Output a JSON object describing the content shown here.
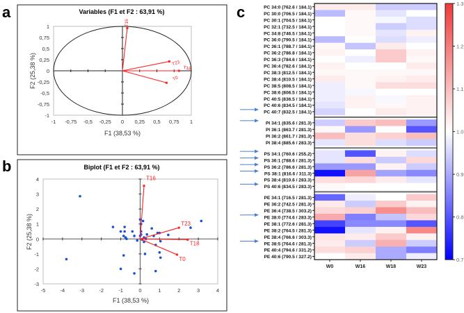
{
  "panel_labels": {
    "a": "a",
    "b": "b",
    "c": "c"
  },
  "chart_data": [
    {
      "type": "scatter",
      "panel": "a",
      "title": "Variables (F1 et F2 : 63,91 %)",
      "xlabel": "F1 (38,53 %)",
      "ylabel": "F2 (25,38 %)",
      "xlim": [
        -1,
        1
      ],
      "ylim": [
        -1,
        1
      ],
      "xticks": [
        "-1",
        "-0,75",
        "-0,5",
        "-0,25",
        "0",
        "0,25",
        "0,5",
        "0,75",
        "1"
      ],
      "yticks": [
        "-1",
        "-0,75",
        "-0,5",
        "-0,25",
        "0",
        "0,25",
        "0,5",
        "0,75",
        "1"
      ],
      "correlation_circle": true,
      "vectors": [
        {
          "name": "T16",
          "x": 0.07,
          "y": 0.96
        },
        {
          "name": "T23",
          "x": 0.68,
          "y": 0.21
        },
        {
          "name": "T18",
          "x": 0.82,
          "y": 0.0
        },
        {
          "name": "T0",
          "x": 0.64,
          "y": -0.27
        }
      ],
      "vector_color": "#ff2020"
    },
    {
      "type": "scatter",
      "panel": "b",
      "title": "Biplot (F1 et F2 : 63,91 %)",
      "xlabel": "F1 (38,53 %)",
      "ylabel": "F2 (25,38 %)",
      "xlim": [
        -5,
        4
      ],
      "ylim": [
        -3,
        4
      ],
      "xticks": [
        "-5",
        "-4",
        "-3",
        "-2",
        "-1",
        "0",
        "1",
        "2",
        "3",
        "4"
      ],
      "yticks": [
        "-3",
        "-2",
        "-1",
        "0",
        "1",
        "2",
        "3",
        "4"
      ],
      "points": [
        [
          -3.1,
          2.85
        ],
        [
          -3.8,
          -1.35
        ],
        [
          -1.0,
          -2.0
        ],
        [
          -0.3,
          -2.3
        ],
        [
          0.8,
          -2.15
        ],
        [
          -0.85,
          -1.1
        ],
        [
          0.25,
          -1.0
        ],
        [
          1.0,
          -0.9
        ],
        [
          1.05,
          -1.25
        ],
        [
          3.15,
          1.2
        ],
        [
          2.6,
          0.75
        ],
        [
          1.45,
          0.27
        ],
        [
          0.0,
          1.3
        ],
        [
          0.05,
          1.0
        ],
        [
          0.15,
          1.2
        ],
        [
          -0.4,
          0.5
        ],
        [
          -0.8,
          0.8
        ],
        [
          -1.4,
          0.8
        ],
        [
          -0.85,
          0.2
        ],
        [
          -0.75,
          0.1
        ],
        [
          -0.7,
          0.0
        ],
        [
          -0.3,
          0.2
        ],
        [
          -0.15,
          -0.1
        ],
        [
          0.0,
          0.2
        ],
        [
          0.05,
          0.5
        ],
        [
          0.05,
          0.3
        ],
        [
          0.2,
          0.1
        ],
        [
          0.3,
          0.0
        ],
        [
          0.7,
          0.2
        ],
        [
          0.6,
          0.7
        ],
        [
          0.9,
          0.4
        ],
        [
          1.0,
          0.4
        ],
        [
          0.8,
          -0.4
        ],
        [
          1.05,
          -0.15
        ],
        [
          0.1,
          -0.05
        ],
        [
          0.2,
          -0.2
        ],
        [
          0.35,
          0.3
        ],
        [
          -0.8,
          0.5
        ],
        [
          -1.0,
          0.5
        ]
      ],
      "point_color": "#1a4fd6",
      "vectors": [
        {
          "name": "T16",
          "x": 0.2,
          "y": 3.55
        },
        {
          "name": "T23",
          "x": 2.0,
          "y": 0.75
        },
        {
          "name": "T18",
          "x": 2.45,
          "y": -0.05
        },
        {
          "name": "T0",
          "x": 1.9,
          "y": -1.05
        }
      ],
      "vector_color": "#ff2020"
    },
    {
      "type": "heatmap",
      "panel": "c",
      "columns": [
        "W0",
        "W16",
        "W18",
        "W23"
      ],
      "colorbar": {
        "min": 0.7,
        "max": 1.3,
        "ticks": [
          "0.7",
          "0.8",
          "0.9",
          "1.0",
          "1.1",
          "1.2",
          "1.3"
        ],
        "low_color": "#0000ff",
        "mid_color": "#ffffff",
        "high_color": "#f03a3a"
      },
      "groups": [
        {
          "rows": [
            {
              "label": "PC 34:0 (762.6 / 184.1)",
              "values": [
                1.03,
                1.03,
                0.94,
                0.94
              ]
            },
            {
              "label": "PC 30:0 (706.5 / 184.1)",
              "values": [
                0.92,
                1.01,
                0.97,
                1.0
              ]
            },
            {
              "label": "PC 30:1 (704.5 / 184.1)",
              "values": [
                1.0,
                1.01,
                0.99,
                0.96
              ]
            },
            {
              "label": "PC 32:1 (732.5 / 184.1)",
              "values": [
                1.0,
                1.01,
                0.94,
                0.96
              ]
            },
            {
              "label": "PC 34:8 (746.5 / 184.1)",
              "values": [
                1.0,
                1.01,
                0.97,
                1.02
              ]
            },
            {
              "label": "PC 36:0 (790.5 / 184.1)",
              "values": [
                0.92,
                1.0,
                0.96,
                0.98
              ]
            },
            {
              "label": "PC 36:1 (788.7 / 184.1)",
              "values": [
                1.01,
                0.93,
                1.03,
                1.0
              ]
            },
            {
              "label": "PC 36:2 (786.8 / 184.1)",
              "values": [
                1.02,
                1.0,
                1.08,
                1.02
              ]
            },
            {
              "label": "PC 36:3 (784.6 / 184.1)",
              "values": [
                1.0,
                0.98,
                1.08,
                1.01
              ]
            },
            {
              "label": "PC 36:4 (782.6 / 184.1)",
              "values": [
                1.02,
                1.0,
                1.0,
                1.03
              ]
            },
            {
              "label": "PC 38:3 (812.5 / 184.1)",
              "values": [
                1.01,
                1.01,
                1.01,
                1.01
              ]
            },
            {
              "label": "PC 38:4 (810.5 / 184.1)",
              "values": [
                1.03,
                1.01,
                1.02,
                1.03
              ]
            },
            {
              "label": "PC 38:5 (808.5 / 184.1)",
              "values": [
                0.98,
                1.01,
                1.05,
                1.05
              ]
            },
            {
              "label": "PC 38:6 (806.5 / 184.1)",
              "values": [
                0.98,
                0.99,
                1.0,
                1.0
              ]
            },
            {
              "label": "PC 40:5 (836.5 / 184.1)",
              "values": [
                0.98,
                1.02,
                0.99,
                1.02
              ]
            },
            {
              "label": "PC 40:6 (834.5 / 184.1)",
              "values": [
                0.97,
                1.02,
                1.01,
                1.02
              ]
            },
            {
              "label": "PC 40:7 (832.5 / 184.1)",
              "values": [
                0.95,
                1.0,
                1.03,
                1.02
              ]
            }
          ]
        },
        {
          "rows": [
            {
              "label": "PI 34:1 (835.6 / 281.3)",
              "values": [
                0.94,
                1.08,
                1.1,
                0.88
              ]
            },
            {
              "label": "PI 36:1 (863.7 / 281.3)",
              "values": [
                1.01,
                0.88,
                1.0,
                0.8
              ]
            },
            {
              "label": "PI 36:2 (861.7 / 281.3)",
              "values": [
                1.1,
                1.05,
                1.07,
                1.1
              ]
            },
            {
              "label": "PI 38:4 (885.6 / 283.3)",
              "values": [
                0.97,
                1.05,
                0.96,
                0.94
              ]
            }
          ]
        },
        {
          "rows": [
            {
              "label": "PS 34:1 (760.6 / 255.2)",
              "values": [
                0.97,
                0.8,
                1.02,
                0.96
              ]
            },
            {
              "label": "PS 36:1 (788.6 / 281.3)",
              "values": [
                0.97,
                1.05,
                0.94,
                1.06
              ]
            },
            {
              "label": "PS 36:2 (786.6 / 281.3)",
              "values": [
                0.88,
                0.88,
                1.02,
                0.94
              ]
            },
            {
              "label": "PS 38:1 (816.6 / 311.3)",
              "values": [
                0.72,
                1.14,
                0.89,
                0.86
              ]
            },
            {
              "label": "PS 38:4 (810.6 / 283.3)",
              "values": [
                1.05,
                1.06,
                1.03,
                0.97
              ]
            },
            {
              "label": "PS 40:6 (834.5 / 283.3)",
              "values": [
                1.01,
                1.0,
                1.0,
                1.0
              ]
            }
          ]
        },
        {
          "rows": [
            {
              "label": "PE 34:1 (716.5 / 281.3)",
              "values": [
                0.82,
                0.98,
                1.0,
                1.08
              ]
            },
            {
              "label": "PE 36:2 (742.5 / 281.3)",
              "values": [
                1.03,
                0.94,
                1.08,
                1.02
              ]
            },
            {
              "label": "PE 36:4 (738.5 / 303.2)",
              "values": [
                1.06,
                1.07,
                1.17,
                1.1
              ]
            },
            {
              "label": "PE 38:0 (774.6 / 283.3)",
              "values": [
                1.13,
                0.85,
                0.93,
                1.06
              ]
            },
            {
              "label": "PE 38:1 (772.6 / 281.3)",
              "values": [
                0.78,
                0.86,
                0.86,
                0.8
              ]
            },
            {
              "label": "PE 38:2 (764.5 / 281.3)",
              "values": [
                0.72,
                0.97,
                1.02,
                1.18
              ]
            },
            {
              "label": "PE 38:4 (766.6 / 303.3)",
              "values": [
                1.04,
                1.03,
                1.08,
                1.02
              ]
            },
            {
              "label": "PE 38:5 (764.6 / 281.3)",
              "values": [
                1.03,
                0.94,
                1.12,
                0.94
              ]
            },
            {
              "label": "PE 40:4 (794.6 / 331.2)",
              "values": [
                1.05,
                1.07,
                0.9,
                0.85
              ]
            },
            {
              "label": "PE 40:6 (790.5 / 327.2)",
              "values": [
                1.0,
                1.03,
                0.9,
                0.98
              ]
            }
          ]
        }
      ],
      "highlighted_rows": [
        "PC 40:7 (832.5 / 184.1)",
        "PI 34:1 (835.6 / 281.3)",
        "PS 34:1 (760.6 / 255.2)",
        "PS 36:1 (788.6 / 281.3)",
        "PS 36:2 (786.6 / 281.3)",
        "PS 38:1 (816.6 / 311.3)",
        "PS 40:6 (834.5 / 283.3)",
        "PE 38:0 (774.6 / 283.3)",
        "PE 38:5 (764.6 / 281.3)"
      ],
      "arrow_color": "#4a7fd4"
    }
  ]
}
